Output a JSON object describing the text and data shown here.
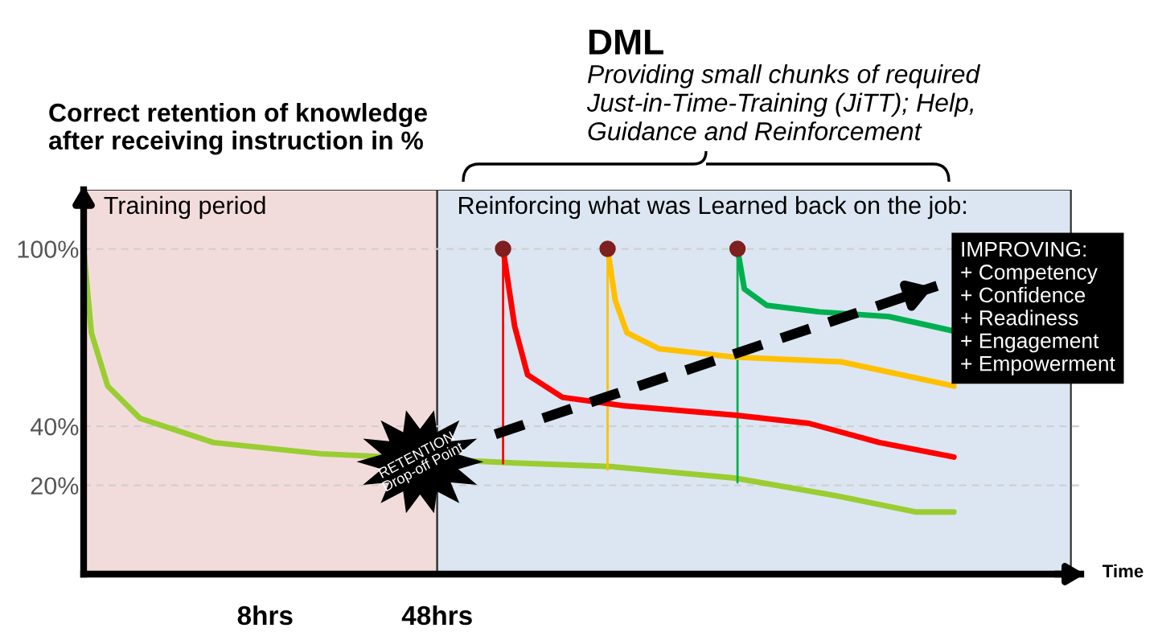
{
  "chart_data": {
    "type": "line",
    "title": "DML",
    "subtitle": "Providing small chunks of required\nJust-in-Time-Training (JiTT); Help,\nGuidance and Reinforcement",
    "ylabel": "Correct retention of knowledge\nafter receiving instruction in %",
    "xlabel": "Time",
    "xlim": [
      -34.2,
      197.6
    ],
    "ylim": [
      -10,
      120
    ],
    "xticks": [
      {
        "value": 8,
        "label": "8hrs"
      },
      {
        "value": 48,
        "label": "48hrs"
      }
    ],
    "yticks": [
      {
        "value": 20,
        "label": "20%"
      },
      {
        "value": 40,
        "label": "40%"
      },
      {
        "value": 100,
        "label": "100%"
      }
    ],
    "grid": "y",
    "bands": [
      {
        "axis": "x",
        "from": -34.2,
        "to": 48,
        "label": "Training period",
        "color": "#f2dcdb"
      },
      {
        "axis": "x",
        "from": 48,
        "to": 195.3,
        "label": "Reinforcing what was Learned back on the job:",
        "color": "#dce6f2"
      }
    ],
    "series": [
      {
        "color": "#9acd32",
        "x": [
          -34.2,
          -32.4,
          -28.6,
          -21.1,
          -4.0,
          21.0,
          66.0,
          88.3,
          117.1,
          140.8,
          159.4,
          168.1
        ],
        "values": [
          100,
          71.6,
          53.6,
          42.7,
          34.5,
          30.7,
          27.6,
          26.4,
          22.5,
          16.5,
          11,
          11
        ]
      },
      {
        "color": "#ff0000",
        "x": [
          63.3,
          63.3
        ],
        "values": [
          100,
          27.4
        ]
      },
      {
        "color": "#ffc000",
        "x": [
          87.6,
          87.6
        ],
        "values": [
          100,
          25.3
        ]
      },
      {
        "color": "#00b050",
        "x": [
          117.8,
          117.8
        ],
        "values": [
          100,
          21
        ]
      },
      {
        "color": "#ff0000",
        "x": [
          63.3,
          66.0,
          69.0,
          77.1,
          91.0,
          117.1,
          134.4,
          150.8,
          168.1
        ],
        "values": [
          100,
          73.8,
          57.4,
          49.8,
          47,
          43.8,
          41,
          34.5,
          29.6
        ]
      },
      {
        "color": "#ffc000",
        "x": [
          87.6,
          89.4,
          92.1,
          99.6,
          117.1,
          141.9,
          168.1
        ],
        "values": [
          100,
          82.5,
          71.6,
          66.2,
          63.4,
          61.8,
          53.6
        ]
      },
      {
        "color": "#00b050",
        "x": [
          117.8,
          119.4,
          124.6,
          136.9,
          153.0,
          168.1
        ],
        "values": [
          100,
          86.4,
          80.9,
          78.7,
          77.1,
          72.2
        ]
      },
      {
        "type": "scatter",
        "color": "#7f1f1f",
        "marker": "circle",
        "x": [
          63.3,
          87.6,
          117.8
        ],
        "values": [
          100,
          100,
          100
        ]
      },
      {
        "color": "#000000",
        "line_style": "dashed",
        "x": [
          61.5,
          164.2
        ],
        "values": [
          37.3,
          87.5
        ]
      }
    ],
    "annotations": [
      {
        "text": "RETENTION\nDrop-off Point",
        "x": 44,
        "y": 28
      },
      "IMPROVING:\n+ Competency\n+ Confidence\n+ Readiness\n+ Engagement\n+ Empowerment"
    ]
  }
}
